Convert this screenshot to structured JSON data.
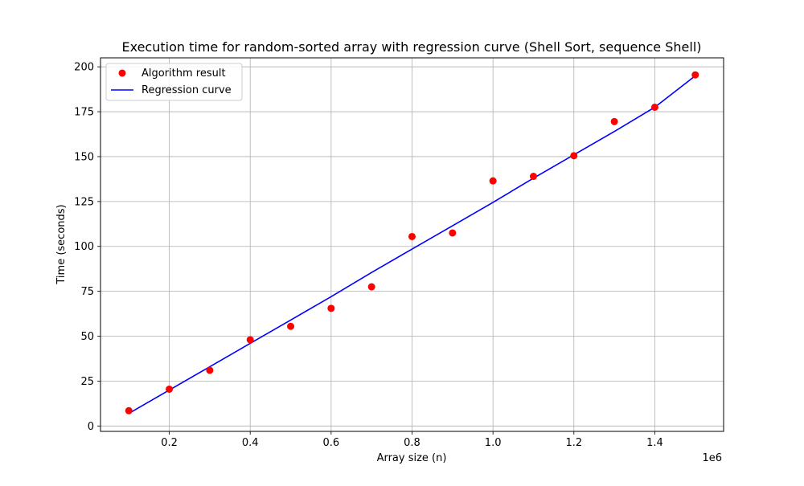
{
  "chart_data": {
    "type": "scatter",
    "title": "Execution time for random-sorted array with regression curve (Shell Sort, sequence Shell)",
    "xlabel": "Array size (n)",
    "ylabel": "Time (seconds)",
    "x_offset_label": "1e6",
    "xlim": [
      0.03,
      1.57
    ],
    "ylim": [
      -3,
      205
    ],
    "x_ticks": [
      0.2,
      0.4,
      0.6,
      0.8,
      1.0,
      1.2,
      1.4
    ],
    "x_tick_labels": [
      "0.2",
      "0.4",
      "0.6",
      "0.8",
      "1.0",
      "1.2",
      "1.4"
    ],
    "y_ticks": [
      0,
      25,
      50,
      75,
      100,
      125,
      150,
      175,
      200
    ],
    "y_tick_labels": [
      "0",
      "25",
      "50",
      "75",
      "100",
      "125",
      "150",
      "175",
      "200"
    ],
    "grid": true,
    "legend_position": "top-left",
    "series": [
      {
        "name": "Algorithm result",
        "kind": "scatter",
        "color": "#ff0000",
        "x": [
          0.1,
          0.2,
          0.3,
          0.4,
          0.5,
          0.6,
          0.7,
          0.8,
          0.9,
          1.0,
          1.1,
          1.2,
          1.3,
          1.4,
          1.5
        ],
        "y": [
          8.5,
          20.5,
          31,
          48,
          55.5,
          65.5,
          77.5,
          105.5,
          107.5,
          136.5,
          139,
          150.5,
          169.5,
          177.5,
          195.5
        ]
      },
      {
        "name": "Regression curve",
        "kind": "line",
        "color": "#0000ff",
        "x": [
          0.1,
          0.2,
          0.3,
          0.4,
          0.5,
          0.6,
          0.7,
          0.8,
          0.9,
          1.0,
          1.1,
          1.2,
          1.3,
          1.4,
          1.5
        ],
        "y": [
          7,
          20,
          33,
          46,
          59,
          72,
          85.5,
          98.5,
          111.5,
          124.5,
          138,
          151,
          164,
          177.5,
          195
        ]
      }
    ]
  }
}
